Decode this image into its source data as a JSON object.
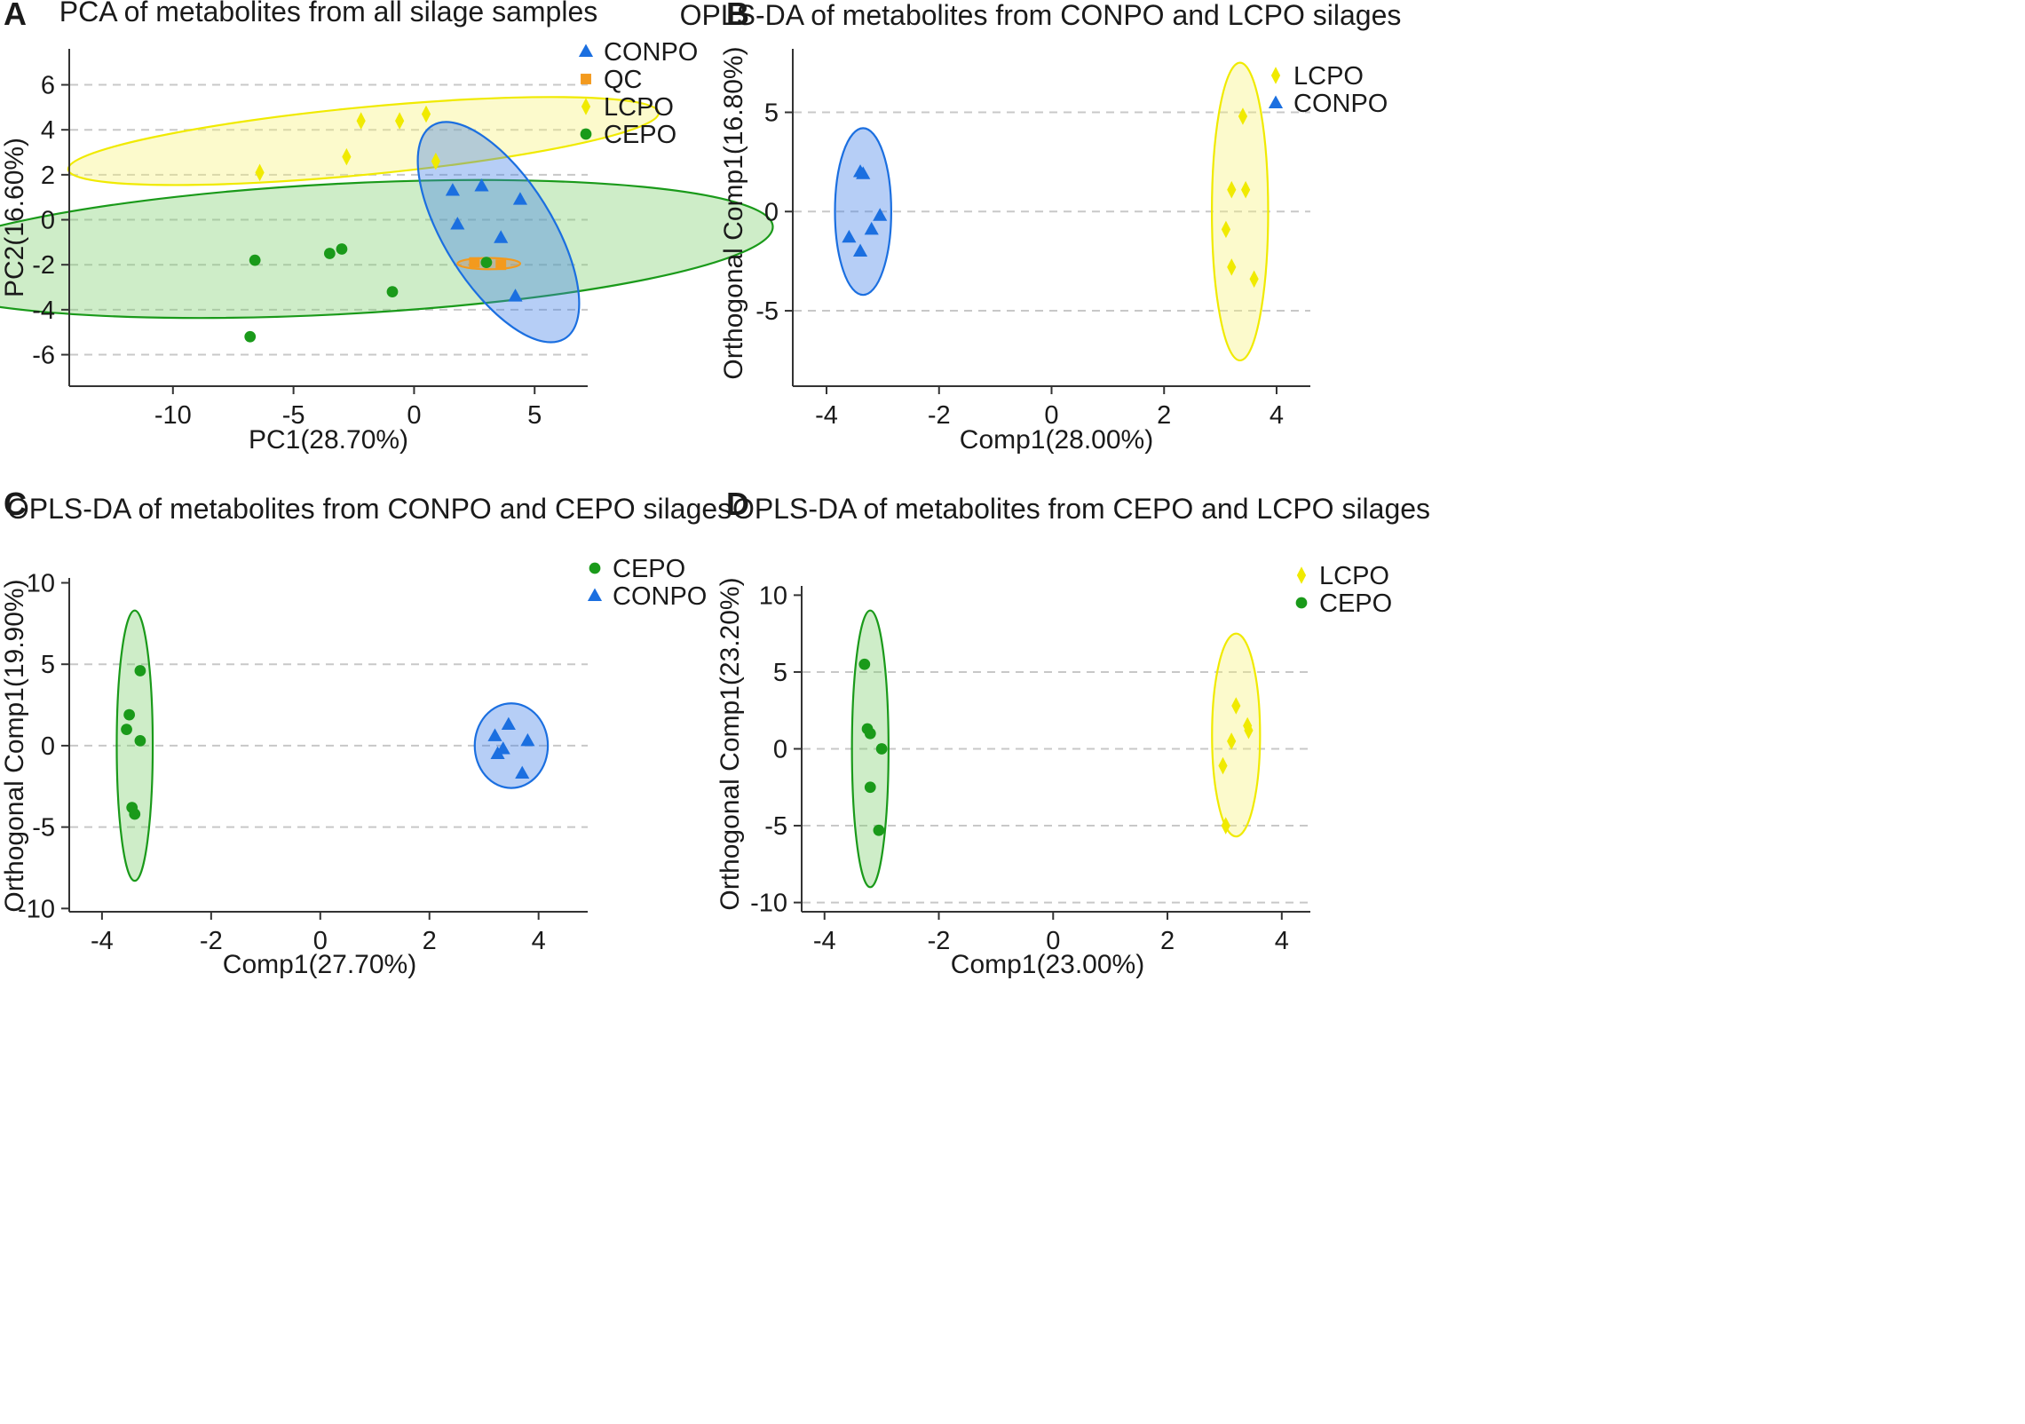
{
  "figure": {
    "description_tag": "four panel multivariate analysis figure"
  },
  "chart_data": [
    {
      "panel": "A",
      "type": "scatter",
      "title": "PCA of metabolites from all silage samples",
      "xlabel": "PC1(28.70%)",
      "ylabel": "PC2(16.60%)",
      "xlim": [
        -14.3,
        7.2
      ],
      "ylim": [
        -7.4,
        7.6
      ],
      "xticks": [
        -10,
        -5,
        0,
        5
      ],
      "yticks": [
        -6,
        -4,
        -2,
        0,
        2,
        4,
        6
      ],
      "xtick_labels": [
        "-10",
        "-5",
        "0",
        "5"
      ],
      "ytick_labels": [
        "-6",
        "-4",
        "-2",
        "0",
        "2",
        "4",
        "6"
      ],
      "gridlines": [
        -6,
        -4,
        -2,
        0,
        2,
        4,
        6
      ],
      "legend_position": "top-right",
      "series": [
        {
          "name": "CONPO",
          "marker": "triangle",
          "color": "#1b6fe0",
          "fill": "#3f7fe8",
          "x": [
            1.6,
            2.8,
            4.4,
            1.8,
            3.6,
            4.2
          ],
          "y": [
            1.3,
            1.5,
            0.9,
            -0.2,
            -0.8,
            -3.4
          ]
        },
        {
          "name": "QC",
          "marker": "square",
          "color": "#f39a1e",
          "fill": "#f5a44a",
          "x": [
            2.5,
            3.6
          ],
          "y": [
            -1.9,
            -2.0
          ]
        },
        {
          "name": "LCPO",
          "marker": "diamond",
          "color": "#f0ea00",
          "fill": "#f8f278",
          "x": [
            -6.4,
            -2.8,
            -2.2,
            -0.6,
            0.5,
            0.9
          ],
          "y": [
            2.1,
            2.8,
            4.4,
            4.4,
            4.7,
            2.6
          ]
        },
        {
          "name": "CEPO",
          "marker": "circle",
          "color": "#1a9a1a",
          "fill": "#7fcf6f",
          "x": [
            -6.6,
            -3.5,
            -3.0,
            -0.9,
            3.0,
            -6.8
          ],
          "y": [
            -1.8,
            -1.5,
            -1.3,
            -3.2,
            -1.9,
            -5.2
          ]
        }
      ],
      "ellipses": [
        {
          "series": "LCPO",
          "center": [
            -2.1,
            3.5
          ],
          "rx": 12.3,
          "ry": 1.5,
          "angle_deg": 5.5
        },
        {
          "series": "CEPO",
          "center": [
            -3.1,
            -1.3
          ],
          "rx": 18.0,
          "ry": 2.9,
          "angle_deg": 3
        },
        {
          "series": "CONPO",
          "center": [
            3.5,
            -0.55
          ],
          "rx": 5.2,
          "ry": 2.4,
          "angle_deg": -58
        },
        {
          "series": "QC",
          "center": [
            3.1,
            -1.95
          ],
          "rx": 1.3,
          "ry": 0.25,
          "angle_deg": 0
        }
      ]
    },
    {
      "panel": "B",
      "type": "scatter",
      "title": "OPLS-DA of metabolites from CONPO and LCPO silages",
      "xlabel": "Comp1(28.00%)",
      "ylabel": "Orthogonal Comp1(16.80%)",
      "xlim": [
        -4.6,
        4.6
      ],
      "ylim": [
        -8.8,
        8.2
      ],
      "xticks": [
        -4,
        -2,
        0,
        2,
        4
      ],
      "yticks": [
        -5,
        0,
        5
      ],
      "xtick_labels": [
        "-4",
        "-2",
        "0",
        "2",
        "4"
      ],
      "ytick_labels": [
        "-5",
        "0",
        "5"
      ],
      "gridlines": [
        -5,
        0,
        5
      ],
      "legend_position": "top-right",
      "series": [
        {
          "name": "LCPO",
          "marker": "diamond",
          "color": "#f0ea00",
          "fill": "#f8f278",
          "x": [
            3.4,
            3.2,
            3.45,
            3.1,
            3.2,
            3.6
          ],
          "y": [
            4.8,
            1.1,
            1.1,
            -0.9,
            -2.8,
            -3.4
          ]
        },
        {
          "name": "CONPO",
          "marker": "triangle",
          "color": "#1b6fe0",
          "fill": "#3f7fe8",
          "x": [
            -3.4,
            -3.35,
            -3.05,
            -3.2,
            -3.6,
            -3.4
          ],
          "y": [
            2.0,
            1.9,
            -0.2,
            -0.9,
            -1.3,
            -2.0
          ]
        }
      ],
      "ellipses": [
        {
          "series": "CONPO",
          "center": [
            -3.35,
            0.0
          ],
          "rx": 0.5,
          "ry": 4.2,
          "angle_deg": 0
        },
        {
          "series": "LCPO",
          "center": [
            3.35,
            0.0
          ],
          "rx": 0.5,
          "ry": 7.5,
          "angle_deg": 0
        }
      ]
    },
    {
      "panel": "C",
      "type": "scatter",
      "title": "OPLS-DA of metabolites from CONPO and CEPO silages",
      "xlabel": "Comp1(27.70%)",
      "ylabel": "Orthogonal Comp1(19.90%)",
      "xlim": [
        -4.6,
        4.9
      ],
      "ylim": [
        -10.2,
        10.3
      ],
      "xticks": [
        -4,
        -2,
        0,
        2,
        4
      ],
      "yticks": [
        -10,
        -5,
        0,
        5,
        10
      ],
      "xtick_labels": [
        "-4",
        "-2",
        "0",
        "2",
        "4"
      ],
      "ytick_labels": [
        "-10",
        "-5",
        "0",
        "5",
        "10"
      ],
      "gridlines": [
        -5,
        0,
        5
      ],
      "legend_position": "top-right",
      "series": [
        {
          "name": "CEPO",
          "marker": "circle",
          "color": "#1a9a1a",
          "fill": "#7fcf6f",
          "x": [
            -3.3,
            -3.5,
            -3.55,
            -3.3,
            -3.45,
            -3.4
          ],
          "y": [
            4.6,
            1.9,
            1.0,
            0.3,
            -3.8,
            -4.2
          ]
        },
        {
          "name": "CONPO",
          "marker": "triangle",
          "color": "#1b6fe0",
          "fill": "#3f7fe8",
          "x": [
            3.45,
            3.2,
            3.8,
            3.35,
            3.25,
            3.7
          ],
          "y": [
            1.3,
            0.6,
            0.3,
            -0.2,
            -0.5,
            -1.7
          ]
        }
      ],
      "ellipses": [
        {
          "series": "CEPO",
          "center": [
            -3.4,
            0.0
          ],
          "rx": 0.33,
          "ry": 8.3,
          "angle_deg": 0
        },
        {
          "series": "CONPO",
          "center": [
            3.5,
            0.0
          ],
          "rx": 0.67,
          "ry": 2.6,
          "angle_deg": 0
        }
      ]
    },
    {
      "panel": "D",
      "type": "scatter",
      "title": "OPLS-DA of metabolites from CEPO and LCPO silages",
      "xlabel": "Comp1(23.00%)",
      "ylabel": "Orthogonal Comp1(23.20%)",
      "xlim": [
        -4.4,
        4.5
      ],
      "ylim": [
        -10.6,
        10.6
      ],
      "xticks": [
        -4,
        -2,
        0,
        2,
        4
      ],
      "yticks": [
        -10,
        -5,
        0,
        5,
        10
      ],
      "xtick_labels": [
        "-4",
        "-2",
        "0",
        "2",
        "4"
      ],
      "ytick_labels": [
        "-10",
        "-5",
        "0",
        "5",
        "10"
      ],
      "gridlines": [
        -10,
        -5,
        0,
        5
      ],
      "legend_position": "top-right",
      "series": [
        {
          "name": "LCPO",
          "marker": "diamond",
          "color": "#f0ea00",
          "fill": "#f8f278",
          "x": [
            3.2,
            3.4,
            3.42,
            3.12,
            2.97,
            3.02
          ],
          "y": [
            2.8,
            1.5,
            1.2,
            0.5,
            -1.1,
            -5.0
          ]
        },
        {
          "name": "CEPO",
          "marker": "circle",
          "color": "#1a9a1a",
          "fill": "#7fcf6f",
          "x": [
            -3.3,
            -3.25,
            -3.2,
            -3.0,
            -3.2,
            -3.05
          ],
          "y": [
            5.5,
            1.3,
            1.0,
            0.0,
            -2.5,
            -5.3
          ]
        }
      ],
      "ellipses": [
        {
          "series": "CEPO",
          "center": [
            -3.2,
            0.0
          ],
          "rx": 0.32,
          "ry": 9.0,
          "angle_deg": 0
        },
        {
          "series": "LCPO",
          "center": [
            3.2,
            0.9
          ],
          "rx": 0.42,
          "ry": 6.6,
          "angle_deg": 0
        }
      ]
    }
  ]
}
